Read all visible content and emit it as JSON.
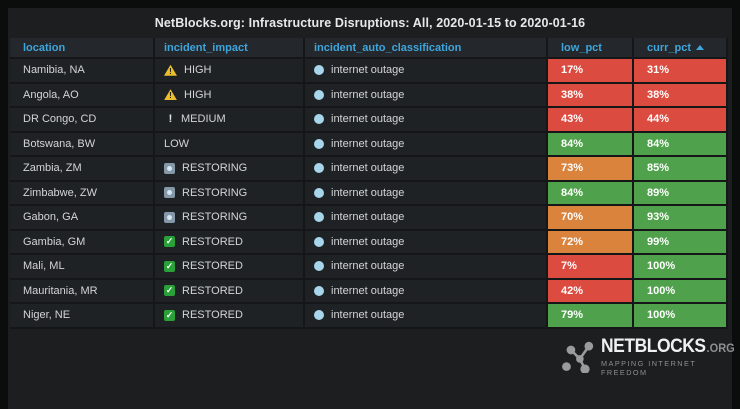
{
  "panel": {
    "title": "NetBlocks.org: Infrastructure Disruptions: All, 2020-01-15 to 2020-01-16"
  },
  "table": {
    "columns": [
      {
        "key": "location",
        "label": "location"
      },
      {
        "key": "incident_impact",
        "label": "incident_impact"
      },
      {
        "key": "incident_auto_classification",
        "label": "incident_auto_classification"
      },
      {
        "key": "low_pct",
        "label": "low_pct"
      },
      {
        "key": "curr_pct",
        "label": "curr_pct",
        "sorted": "asc"
      }
    ],
    "rows": [
      {
        "location": "Namibia, NA",
        "impact": "HIGH",
        "impact_icon": "warning-triangle-icon",
        "classification": "internet outage",
        "classification_icon": "globe-icon",
        "low_pct": "17%",
        "low_color": "red",
        "curr_pct": "31%",
        "curr_color": "red"
      },
      {
        "location": "Angola, AO",
        "impact": "HIGH",
        "impact_icon": "warning-triangle-icon",
        "classification": "internet outage",
        "classification_icon": "globe-icon",
        "low_pct": "38%",
        "low_color": "red",
        "curr_pct": "38%",
        "curr_color": "red"
      },
      {
        "location": "DR Congo, CD",
        "impact": "MEDIUM",
        "impact_icon": "exclamation-icon",
        "classification": "internet outage",
        "classification_icon": "globe-icon",
        "low_pct": "43%",
        "low_color": "red",
        "curr_pct": "44%",
        "curr_color": "red"
      },
      {
        "location": "Botswana, BW",
        "impact": "LOW",
        "impact_icon": "none",
        "classification": "internet outage",
        "classification_icon": "globe-icon",
        "low_pct": "84%",
        "low_color": "green",
        "curr_pct": "84%",
        "curr_color": "green"
      },
      {
        "location": "Zambia, ZM",
        "impact": "RESTORING",
        "impact_icon": "restoring-icon",
        "classification": "internet outage",
        "classification_icon": "globe-icon",
        "low_pct": "73%",
        "low_color": "orange",
        "curr_pct": "85%",
        "curr_color": "green"
      },
      {
        "location": "Zimbabwe, ZW",
        "impact": "RESTORING",
        "impact_icon": "restoring-icon",
        "classification": "internet outage",
        "classification_icon": "globe-icon",
        "low_pct": "84%",
        "low_color": "green",
        "curr_pct": "89%",
        "curr_color": "green"
      },
      {
        "location": "Gabon, GA",
        "impact": "RESTORING",
        "impact_icon": "restoring-icon",
        "classification": "internet outage",
        "classification_icon": "globe-icon",
        "low_pct": "70%",
        "low_color": "orange",
        "curr_pct": "93%",
        "curr_color": "green"
      },
      {
        "location": "Gambia, GM",
        "impact": "RESTORED",
        "impact_icon": "restored-check-icon",
        "classification": "internet outage",
        "classification_icon": "globe-icon",
        "low_pct": "72%",
        "low_color": "orange",
        "curr_pct": "99%",
        "curr_color": "green"
      },
      {
        "location": "Mali, ML",
        "impact": "RESTORED",
        "impact_icon": "restored-check-icon",
        "classification": "internet outage",
        "classification_icon": "globe-icon",
        "low_pct": "7%",
        "low_color": "red",
        "curr_pct": "100%",
        "curr_color": "green"
      },
      {
        "location": "Mauritania, MR",
        "impact": "RESTORED",
        "impact_icon": "restored-check-icon",
        "classification": "internet outage",
        "classification_icon": "globe-icon",
        "low_pct": "42%",
        "low_color": "red",
        "curr_pct": "100%",
        "curr_color": "green"
      },
      {
        "location": "Niger, NE",
        "impact": "RESTORED",
        "impact_icon": "restored-check-icon",
        "classification": "internet outage",
        "classification_icon": "globe-icon",
        "low_pct": "79%",
        "low_color": "green",
        "curr_pct": "100%",
        "curr_color": "green"
      }
    ]
  },
  "colors": {
    "red": "#dc4b40",
    "orange": "#d9833c",
    "green": "#4fa24b",
    "header_text": "#3ea6dc",
    "warning_yellow": "#ecbe2b",
    "restored_green": "#2aa138",
    "restoring_blue": "#8498a8",
    "globe_cyan": "#a7d6ea"
  },
  "logo": {
    "brand": "NETBLOCKS",
    "tld": ".ORG",
    "tagline": "MAPPING INTERNET FREEDOM"
  }
}
